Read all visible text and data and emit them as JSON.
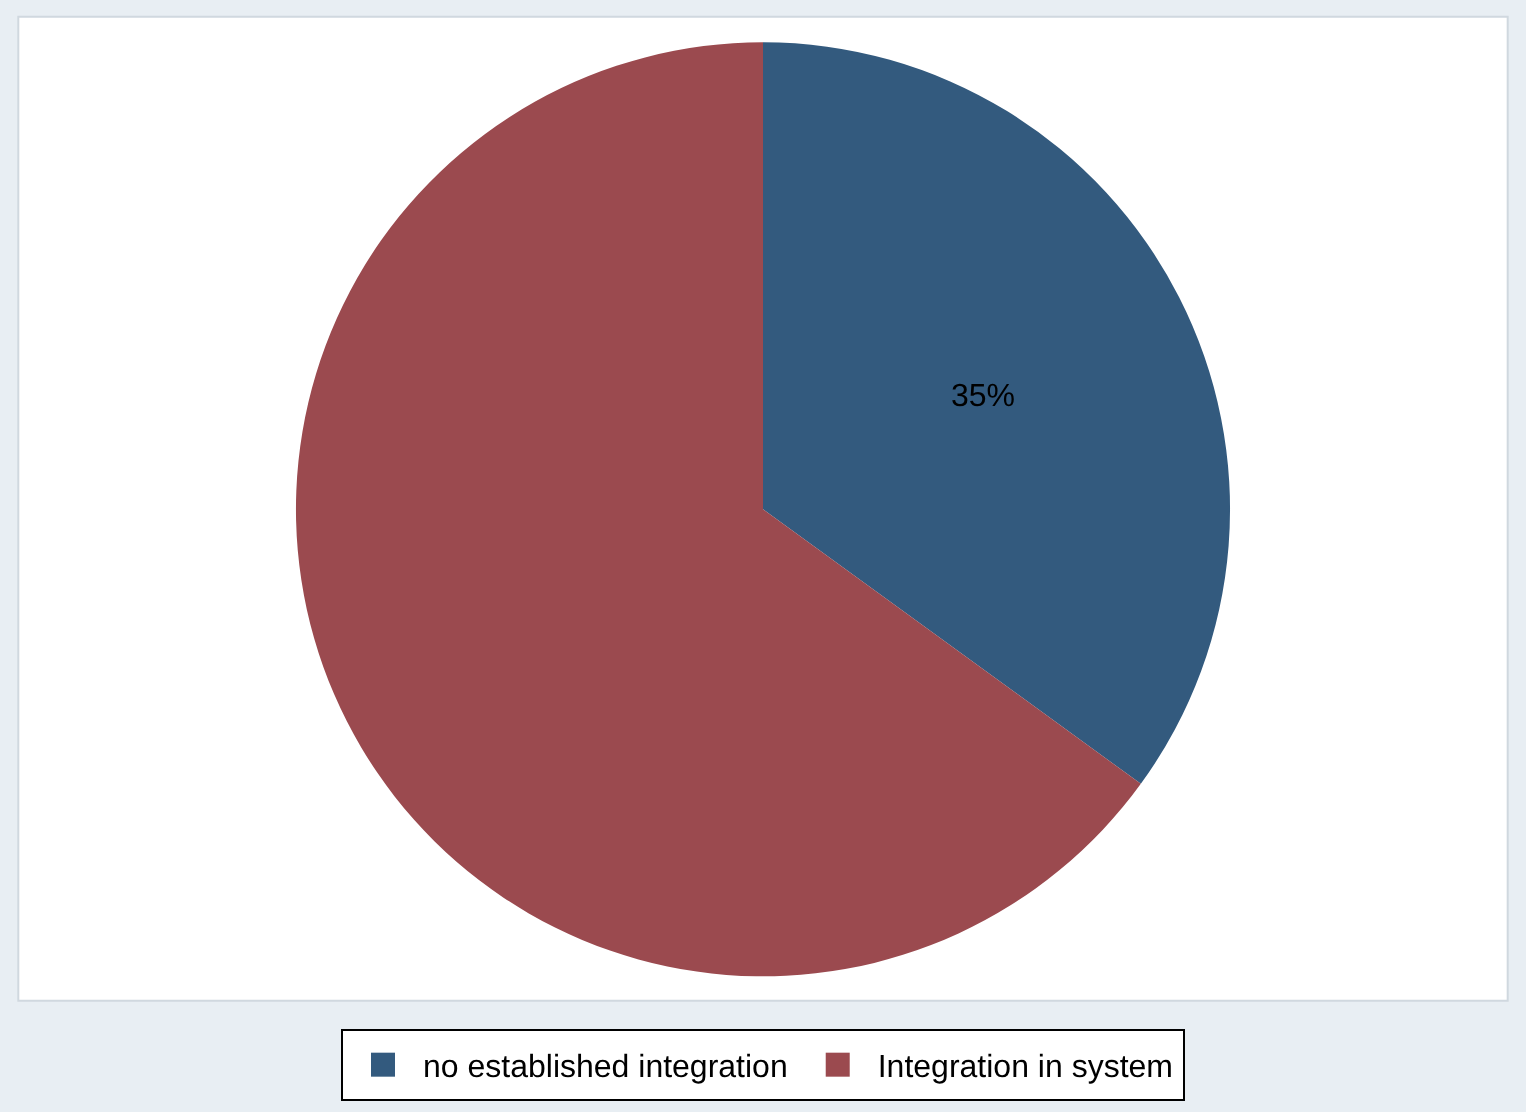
{
  "chart_data": {
    "type": "pie",
    "categories": [
      "no established integration",
      "Integration in system"
    ],
    "values": [
      35,
      65
    ],
    "colors": [
      "#335a7e",
      "#9b4a4f"
    ],
    "value_labels": [
      "35%",
      null
    ],
    "legend": "bottom"
  }
}
